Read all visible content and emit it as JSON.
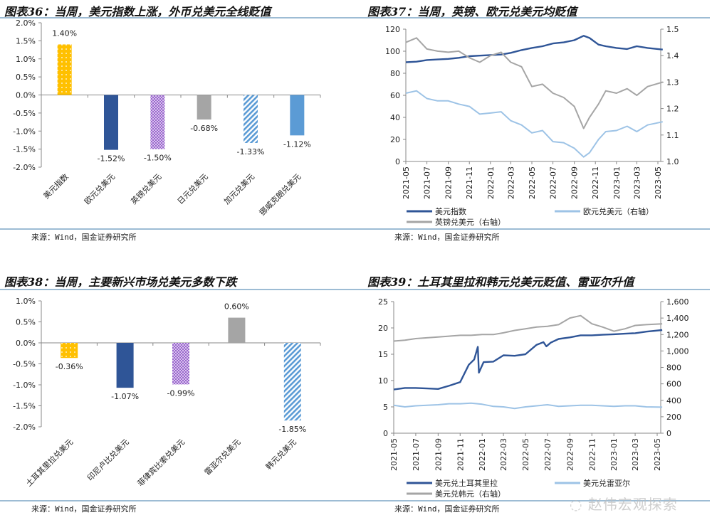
{
  "panels": {
    "p36": {
      "title": "图表36：当周，美元指数上涨，外币兑美元全线贬值",
      "source": "来源：Wind，国金证券研究所"
    },
    "p37": {
      "title": "图表37：当周，英镑、欧元兑美元均贬值",
      "source": "来源：Wind，国金证券研究所"
    },
    "p38": {
      "title": "图表38：当周，主要新兴市场兑美元多数下跌",
      "source": "来源：Wind，国金证券研究所"
    },
    "p39": {
      "title": "图表39：土耳其里拉和韩元兑美元贬值、雷亚尔升值",
      "source": "来源：Wind，国金证券研究所"
    }
  },
  "watermark": "赵伟宏观探索",
  "chart_data": [
    {
      "type": "bar",
      "ylim": [
        -2.0,
        2.0
      ],
      "yticks": [
        "2.0%",
        "1.5%",
        "1.0%",
        "0.5%",
        "0.0%",
        "-0.5%",
        "-1.0%",
        "-1.5%",
        "-2.0%"
      ],
      "categories": [
        "美元指数",
        "欧元兑美元",
        "英镑兑美元",
        "日元兑美元",
        "加元兑美元",
        "挪威克朗兑美元"
      ],
      "values": [
        1.4,
        -1.52,
        -1.5,
        -0.68,
        -1.33,
        -1.12
      ],
      "labels": [
        "1.40%",
        "-1.52%",
        "-1.50%",
        "-0.68%",
        "-1.33%",
        "-1.12%"
      ],
      "fills": [
        "dots-yellow",
        "#2f5597",
        "check-purple",
        "#a5a5a5",
        "stripe-blue",
        "#5b9bd5"
      ]
    },
    {
      "type": "line",
      "ylim": [
        0,
        120
      ],
      "y2lim": [
        1.0,
        1.5
      ],
      "yticks": [
        "0",
        "20",
        "40",
        "60",
        "80",
        "100",
        "120"
      ],
      "y2ticks": [
        "1.0",
        "1.1",
        "1.2",
        "1.3",
        "1.4",
        "1.5"
      ],
      "xticks": [
        "2021-05",
        "2021-07",
        "2021-09",
        "2021-11",
        "2022-01",
        "2022-03",
        "2022-05",
        "2022-07",
        "2022-09",
        "2022-11",
        "2023-01",
        "2023-03",
        "2023-05"
      ],
      "series": [
        {
          "name": "美元指数",
          "axis": "left",
          "color": "#2f5597",
          "x": [
            "2021-05-01",
            "2021-06-01",
            "2021-07-01",
            "2021-08-01",
            "2021-09-01",
            "2021-10-01",
            "2021-11-01",
            "2021-12-01",
            "2022-01-01",
            "2022-02-01",
            "2022-03-01",
            "2022-04-01",
            "2022-05-01",
            "2022-06-01",
            "2022-07-01",
            "2022-08-01",
            "2022-09-01",
            "2022-09-28",
            "2022-10-15",
            "2022-11-10",
            "2022-12-01",
            "2023-01-01",
            "2023-02-01",
            "2023-03-01",
            "2023-04-01",
            "2023-05-15"
          ],
          "y": [
            90,
            90.5,
            92,
            92.5,
            93,
            94,
            95.5,
            96,
            96.5,
            97,
            98.5,
            101,
            103,
            104.5,
            107,
            108,
            110,
            114,
            112,
            106,
            104.5,
            103,
            102,
            104.5,
            103,
            101.5
          ]
        },
        {
          "name": "英镑兑美元（右轴）",
          "axis": "right",
          "color": "#a5a5a5",
          "x": [
            "2021-05-01",
            "2021-06-01",
            "2021-07-01",
            "2021-08-01",
            "2021-09-01",
            "2021-10-01",
            "2021-11-01",
            "2021-12-01",
            "2022-01-01",
            "2022-02-01",
            "2022-03-01",
            "2022-04-01",
            "2022-05-01",
            "2022-06-01",
            "2022-07-01",
            "2022-08-01",
            "2022-09-01",
            "2022-09-28",
            "2022-10-15",
            "2022-11-10",
            "2022-12-01",
            "2023-01-01",
            "2023-02-01",
            "2023-03-01",
            "2023-04-01",
            "2023-05-15"
          ],
          "y": [
            1.45,
            1.467,
            1.425,
            1.417,
            1.413,
            1.417,
            1.392,
            1.375,
            1.4,
            1.413,
            1.375,
            1.358,
            1.283,
            1.292,
            1.258,
            1.242,
            1.208,
            1.125,
            1.167,
            1.217,
            1.267,
            1.258,
            1.275,
            1.25,
            1.283,
            1.3
          ]
        },
        {
          "name": "欧元兑美元（右轴）",
          "axis": "right",
          "color": "#9dc3e6",
          "x": [
            "2021-05-01",
            "2021-06-01",
            "2021-07-01",
            "2021-08-01",
            "2021-09-01",
            "2021-10-01",
            "2021-11-01",
            "2021-12-01",
            "2022-01-01",
            "2022-02-01",
            "2022-03-01",
            "2022-04-01",
            "2022-05-01",
            "2022-06-01",
            "2022-07-01",
            "2022-08-01",
            "2022-09-01",
            "2022-09-28",
            "2022-10-15",
            "2022-11-10",
            "2022-12-01",
            "2023-01-01",
            "2023-02-01",
            "2023-03-01",
            "2023-04-01",
            "2023-05-15"
          ],
          "y": [
            1.258,
            1.267,
            1.238,
            1.229,
            1.229,
            1.217,
            1.208,
            1.179,
            1.183,
            1.188,
            1.154,
            1.138,
            1.108,
            1.117,
            1.075,
            1.071,
            1.05,
            1.017,
            1.033,
            1.083,
            1.113,
            1.117,
            1.133,
            1.113,
            1.138,
            1.15
          ]
        }
      ]
    },
    {
      "type": "bar",
      "ylim": [
        -2.0,
        1.0
      ],
      "yticks": [
        "1.0%",
        "0.5%",
        "0.0%",
        "-0.5%",
        "-1.0%",
        "-1.5%",
        "-2.0%"
      ],
      "categories": [
        "土耳其里拉兑美元",
        "印尼卢比兑美元",
        "菲律宾比索兑美元",
        "雷亚尔兑美元",
        "韩元兑美元"
      ],
      "values": [
        -0.36,
        -1.07,
        -0.99,
        0.6,
        -1.85
      ],
      "labels": [
        "-0.36%",
        "-1.07%",
        "-0.99%",
        "0.60%",
        "-1.85%"
      ],
      "fills": [
        "dots-yellow",
        "#2f5597",
        "check-purple",
        "#a5a5a5",
        "stripe-blue"
      ]
    },
    {
      "type": "line",
      "ylim": [
        0,
        25
      ],
      "y2lim": [
        0,
        1600
      ],
      "yticks": [
        "0",
        "5",
        "10",
        "15",
        "20",
        "25"
      ],
      "y2ticks": [
        "0",
        "200",
        "400",
        "600",
        "800",
        "1,000",
        "1,200",
        "1,400",
        "1,600"
      ],
      "xticks": [
        "2021-05",
        "2021-07",
        "2021-09",
        "2021-11",
        "2022-01",
        "2022-03",
        "2022-05",
        "2022-07",
        "2022-09",
        "2022-11",
        "2023-01",
        "2023-03",
        "2023-05"
      ],
      "series": [
        {
          "name": "美元兑土耳其里拉",
          "axis": "left",
          "color": "#2f5597",
          "x": [
            "2021-05-01",
            "2021-06-01",
            "2021-07-01",
            "2021-08-01",
            "2021-09-01",
            "2021-10-01",
            "2021-11-01",
            "2021-11-25",
            "2021-12-10",
            "2021-12-20",
            "2021-12-23",
            "2022-01-05",
            "2022-02-01",
            "2022-03-01",
            "2022-04-01",
            "2022-05-01",
            "2022-06-01",
            "2022-06-20",
            "2022-06-28",
            "2022-07-10",
            "2022-08-01",
            "2022-09-01",
            "2022-10-01",
            "2022-11-01",
            "2022-12-01",
            "2023-01-01",
            "2023-02-01",
            "2023-03-01",
            "2023-04-01",
            "2023-05-15"
          ],
          "y": [
            8.3,
            8.6,
            8.6,
            8.5,
            8.4,
            9.0,
            9.7,
            13.0,
            14.0,
            16.4,
            11.5,
            13.5,
            13.6,
            14.8,
            14.7,
            15.0,
            16.8,
            17.3,
            16.5,
            17.2,
            17.9,
            18.2,
            18.6,
            18.6,
            18.7,
            18.8,
            18.9,
            19.0,
            19.3,
            19.6
          ]
        },
        {
          "name": "美元兑韩元（右轴）",
          "axis": "right",
          "color": "#a5a5a5",
          "x": [
            "2021-05-01",
            "2021-06-01",
            "2021-07-01",
            "2021-08-01",
            "2021-09-01",
            "2021-10-01",
            "2021-11-01",
            "2021-12-01",
            "2022-01-01",
            "2022-02-01",
            "2022-03-01",
            "2022-04-01",
            "2022-05-01",
            "2022-06-01",
            "2022-07-01",
            "2022-08-01",
            "2022-09-01",
            "2022-10-01",
            "2022-11-01",
            "2022-12-01",
            "2023-01-01",
            "2023-02-01",
            "2023-03-01",
            "2023-04-01",
            "2023-05-15"
          ],
          "y": [
            1120,
            1130,
            1150,
            1160,
            1170,
            1180,
            1190,
            1190,
            1200,
            1200,
            1220,
            1250,
            1270,
            1290,
            1300,
            1320,
            1400,
            1430,
            1330,
            1290,
            1240,
            1270,
            1310,
            1320,
            1330
          ]
        },
        {
          "name": "美元兑雷亚尔",
          "axis": "left",
          "color": "#9dc3e6",
          "x": [
            "2021-05-01",
            "2021-06-01",
            "2021-07-01",
            "2021-08-01",
            "2021-09-01",
            "2021-10-01",
            "2021-11-01",
            "2021-12-01",
            "2022-01-01",
            "2022-02-01",
            "2022-03-01",
            "2022-04-01",
            "2022-05-01",
            "2022-06-01",
            "2022-07-01",
            "2022-08-01",
            "2022-09-01",
            "2022-10-01",
            "2022-11-01",
            "2022-12-01",
            "2023-01-01",
            "2023-02-01",
            "2023-03-01",
            "2023-04-01",
            "2023-05-15"
          ],
          "y": [
            5.3,
            5.0,
            5.2,
            5.3,
            5.4,
            5.6,
            5.6,
            5.7,
            5.5,
            5.1,
            5.0,
            4.7,
            5.0,
            5.2,
            5.4,
            5.1,
            5.2,
            5.3,
            5.3,
            5.2,
            5.1,
            5.2,
            5.2,
            5.0,
            4.95
          ]
        }
      ]
    }
  ]
}
